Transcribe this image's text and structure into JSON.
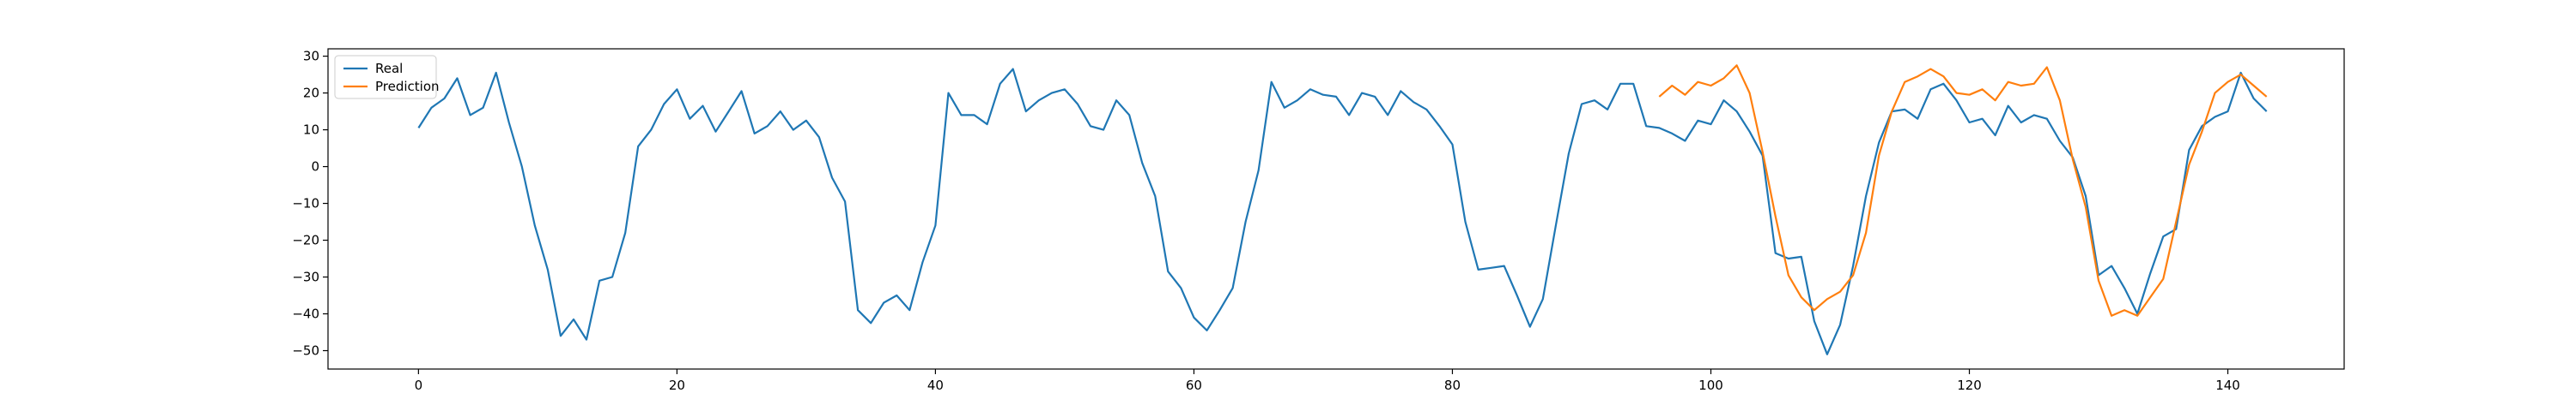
{
  "chart_data": {
    "type": "line",
    "title": "",
    "xlabel": "",
    "ylabel": "",
    "xlim": [
      -7,
      149
    ],
    "ylim": [
      -55,
      32
    ],
    "xticks": [
      0,
      20,
      40,
      60,
      80,
      100,
      120,
      140
    ],
    "yticks": [
      -50,
      -40,
      -30,
      -20,
      -10,
      0,
      10,
      20,
      30
    ],
    "grid": false,
    "legend_position": "top-left",
    "series": [
      {
        "name": "Real",
        "color": "#1f77b4",
        "x_start": 0,
        "values": [
          10.5,
          16,
          18.5,
          24,
          14,
          16,
          25.5,
          12,
          0,
          -16,
          -28,
          -46,
          -41.5,
          -47,
          -31,
          -30,
          -18,
          5.5,
          10,
          17,
          21,
          13,
          16.5,
          9.5,
          15,
          20.5,
          9,
          11,
          15,
          10,
          12.5,
          8,
          -3,
          -9.5,
          -39,
          -42.5,
          -37,
          -35,
          -39,
          -26,
          -16,
          20,
          14,
          14,
          11.5,
          22.5,
          26.5,
          15,
          18,
          20,
          21,
          17,
          11,
          10,
          18,
          14,
          1,
          -8,
          -28.5,
          -33,
          -41,
          -44.5,
          -39,
          -33,
          -15,
          -1,
          23,
          16,
          18,
          21,
          19.5,
          19,
          14,
          20,
          19,
          14,
          20.5,
          17.5,
          15.5,
          11,
          6,
          -15,
          -28,
          -27.5,
          -27,
          -35,
          -43.5,
          -36,
          -16,
          3.5,
          17,
          18,
          15.5,
          22.5,
          22.5,
          11,
          10.5,
          9,
          7,
          12.5,
          11.5,
          18,
          15,
          9.5,
          3,
          -23.5,
          -25,
          -24.5,
          -42,
          -51,
          -43,
          -27,
          -8,
          6.5,
          15,
          15.5,
          13,
          21,
          22.5,
          18,
          12,
          13,
          8.5,
          16.5,
          12,
          14,
          13,
          7,
          2.5,
          -8,
          -29.5,
          -27,
          -33,
          -40,
          -29,
          -19,
          -17,
          4.5,
          11,
          13.5,
          15,
          25.5,
          18.5,
          15
        ]
      },
      {
        "name": "Prediction",
        "color": "#ff7f0e",
        "x_start": 96,
        "values": [
          19,
          22,
          19.5,
          23,
          22,
          24,
          27.5,
          20,
          4,
          -13.5,
          -29.5,
          -35.5,
          -39,
          -36,
          -34,
          -29.5,
          -18,
          3,
          15,
          23,
          24.5,
          26.5,
          24.5,
          20,
          19.5,
          21,
          18,
          23,
          22,
          22.5,
          27,
          18,
          2,
          -11,
          -31,
          -40.5,
          -39,
          -40.5,
          -35.5,
          -30.5,
          -15,
          0.5,
          9.5,
          20,
          23,
          25,
          22,
          19
        ]
      }
    ]
  }
}
